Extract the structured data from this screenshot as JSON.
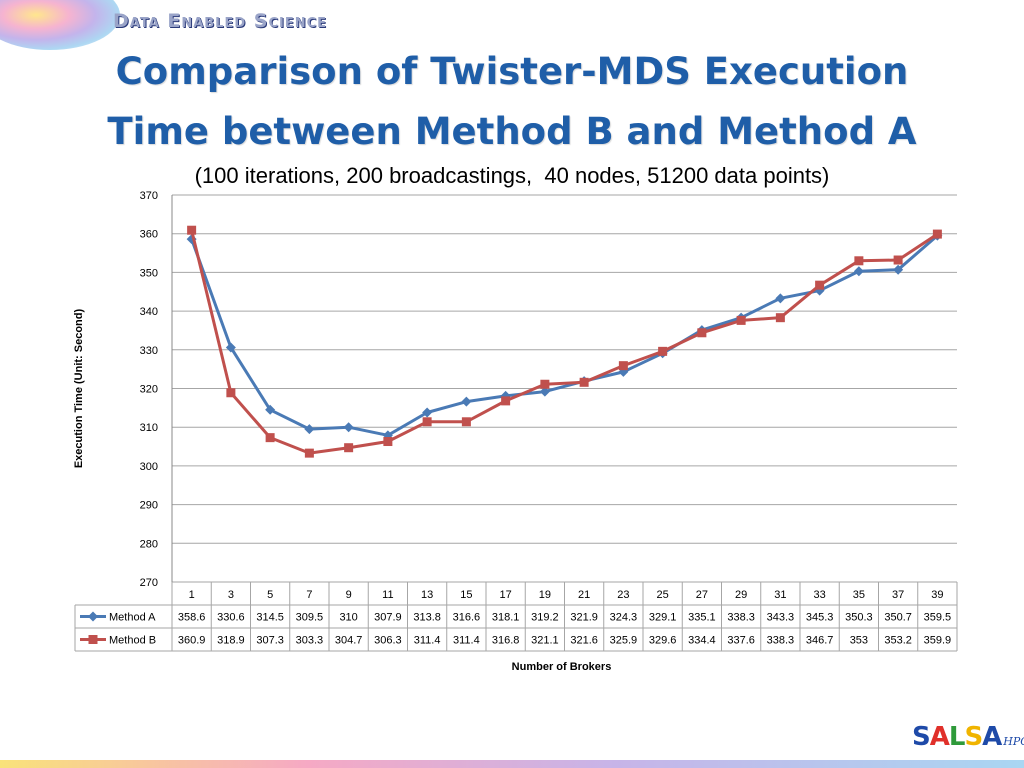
{
  "header": {
    "brand": "Data Enabled Science",
    "title_line1": "Comparison of Twister-MDS Execution",
    "title_line2": "Time between Method B and Method A",
    "subtitle": "(100 iterations, 200 broadcastings,  40 nodes, 51200 data points)"
  },
  "footer": {
    "logo_parts": [
      "S",
      "A",
      "L",
      "S",
      "A"
    ],
    "logo_suffix": "HPC"
  },
  "colors": {
    "title": "#1f5ea8",
    "method_a": "#4a7ab5",
    "method_b": "#c0504d",
    "grid": "#a6a6a6"
  },
  "chart_data": {
    "type": "line",
    "title": "",
    "xlabel": "Number of Brokers",
    "ylabel": "Execution Time (Unit: Second)",
    "ylim": [
      270,
      370
    ],
    "yticks": [
      270,
      280,
      290,
      300,
      310,
      320,
      330,
      340,
      350,
      360,
      370
    ],
    "grid": true,
    "legend": "data-table",
    "categories": [
      "1",
      "3",
      "5",
      "7",
      "9",
      "11",
      "13",
      "15",
      "17",
      "19",
      "21",
      "23",
      "25",
      "27",
      "29",
      "31",
      "33",
      "35",
      "37",
      "39"
    ],
    "series": [
      {
        "name": "Method A",
        "marker": "diamond",
        "values": [
          358.6,
          330.6,
          314.5,
          309.5,
          310,
          307.9,
          313.8,
          316.6,
          318.1,
          319.2,
          321.9,
          324.3,
          329.1,
          335.1,
          338.3,
          343.3,
          345.3,
          350.3,
          350.7,
          359.5
        ]
      },
      {
        "name": "Method B",
        "marker": "square",
        "values": [
          360.9,
          318.9,
          307.3,
          303.3,
          304.7,
          306.3,
          311.4,
          311.4,
          316.8,
          321.1,
          321.6,
          325.9,
          329.6,
          334.4,
          337.6,
          338.3,
          346.7,
          353,
          353.2,
          359.9
        ]
      }
    ]
  }
}
